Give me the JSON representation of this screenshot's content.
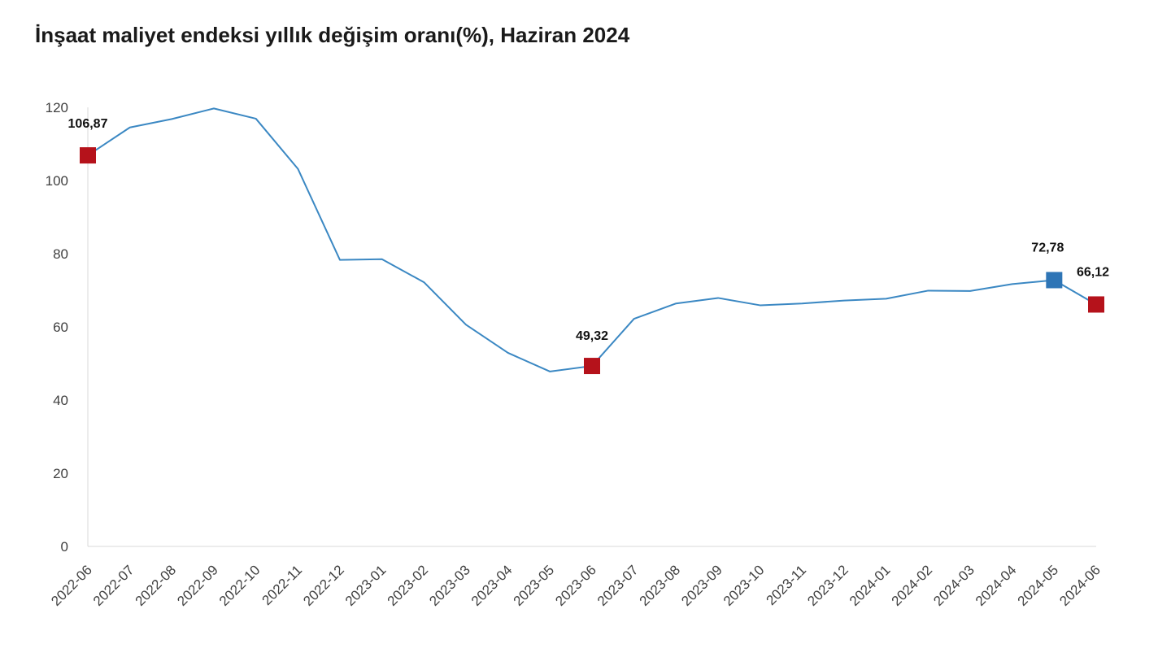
{
  "chart_data": {
    "type": "line",
    "title": "İnşaat maliyet endeksi yıllık değişim oranı(%), Haziran 2024",
    "xlabel": "",
    "ylabel": "",
    "ylim": [
      0,
      120
    ],
    "yticks": [
      0,
      20,
      40,
      60,
      80,
      100,
      120
    ],
    "grid": false,
    "categories": [
      "2022-06",
      "2022-07",
      "2022-08",
      "2022-09",
      "2022-10",
      "2022-11",
      "2022-12",
      "2023-01",
      "2023-02",
      "2023-03",
      "2023-04",
      "2023-05",
      "2023-06",
      "2023-07",
      "2023-08",
      "2023-09",
      "2023-10",
      "2023-11",
      "2023-12",
      "2024-01",
      "2024-02",
      "2024-03",
      "2024-04",
      "2024-05",
      "2024-06"
    ],
    "series": [
      {
        "values": [
          106.87,
          114.5,
          116.8,
          119.7,
          116.9,
          103.2,
          78.3,
          78.5,
          72.2,
          60.6,
          52.9,
          47.8,
          49.32,
          62.2,
          66.4,
          67.9,
          65.9,
          66.4,
          67.2,
          67.7,
          69.9,
          69.8,
          71.7,
          72.78,
          66.12
        ]
      }
    ],
    "colors": {
      "line": "#3b88c3",
      "marker_red": "#b5121b",
      "marker_blue": "#2e75b6",
      "axis": "#d9d9d9"
    },
    "highlights": [
      {
        "index": 0,
        "label": "106,87",
        "color": "red"
      },
      {
        "index": 12,
        "label": "49,32",
        "color": "red"
      },
      {
        "index": 23,
        "label": "72,78",
        "color": "blue"
      },
      {
        "index": 24,
        "label": "66,12",
        "color": "red"
      }
    ]
  }
}
